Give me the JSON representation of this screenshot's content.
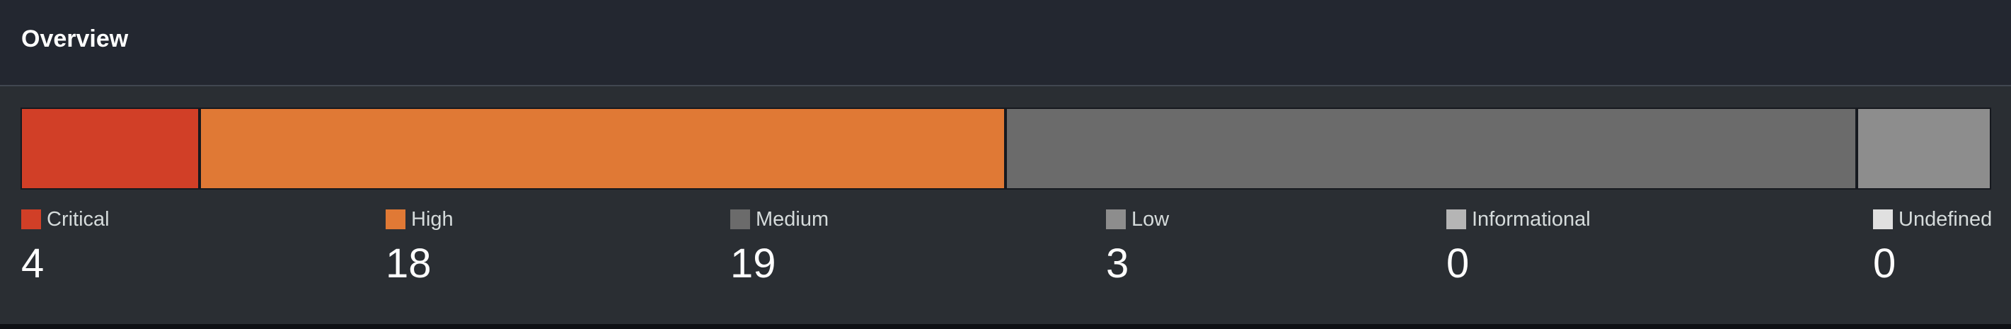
{
  "panel": {
    "title": "Overview"
  },
  "severity": {
    "items": [
      {
        "label": "Critical",
        "count": "4",
        "value": 4,
        "color": "#d13f27"
      },
      {
        "label": "High",
        "count": "18",
        "value": 18,
        "color": "#e07935"
      },
      {
        "label": "Medium",
        "count": "19",
        "value": 19,
        "color": "#6b6b6b"
      },
      {
        "label": "Low",
        "count": "3",
        "value": 3,
        "color": "#8d8d8d"
      },
      {
        "label": "Informational",
        "count": "0",
        "value": 0,
        "color": "#b5b5b5"
      },
      {
        "label": "Undefined",
        "count": "0",
        "value": 0,
        "color": "#e0e0e0"
      }
    ]
  }
}
